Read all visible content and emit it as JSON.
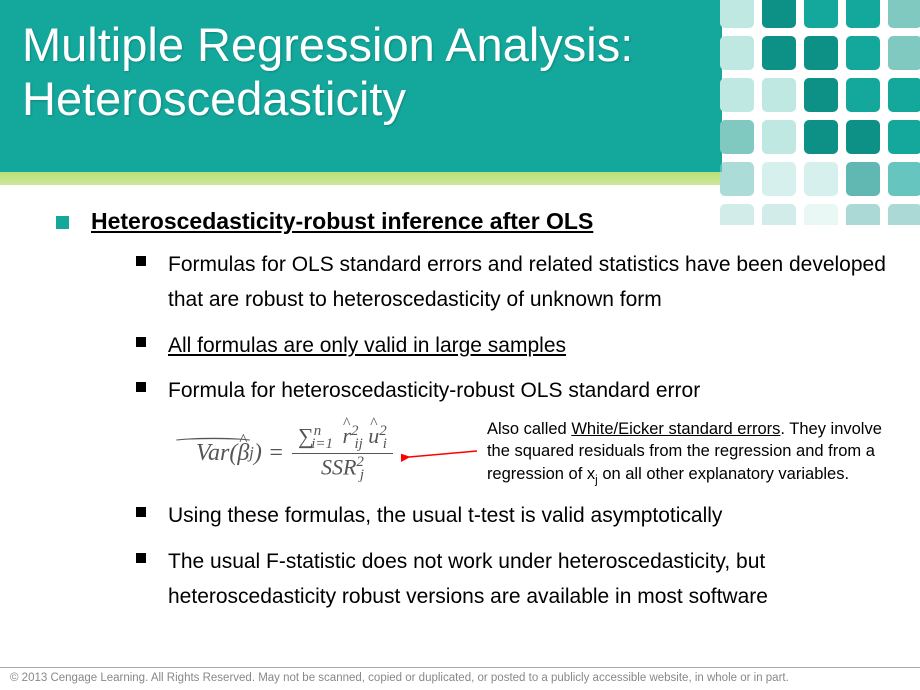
{
  "colors": {
    "teal": "#14a89c",
    "teal_dark": "#0d9187",
    "lime_top": "#b7df72",
    "lime_bot": "#cbe8a0",
    "arrow": "#ff0000",
    "text": "#000000",
    "footer": "#888888",
    "formula": "#555555",
    "deco_light": "#bfe8e3",
    "deco_mid": "#7fc9c1",
    "deco_teal": "#14a89c"
  },
  "title_line1": "Multiple Regression Analysis:",
  "title_line2": "Heteroscedasticity",
  "main_heading": "Heteroscedasticity-robust inference after OLS",
  "bullets": {
    "b1": "Formulas for OLS standard errors and related statistics have been developed that are robust to heteroscedasticity of unknown form",
    "b2": "All formulas are only valid in large samples",
    "b3": "Formula for heteroscedasticity-robust OLS standard error",
    "b4": "Using these formulas, the usual t-test is valid asymptotically",
    "b5": "The usual F-statistic does not work under heteroscedasticity, but heteroscedasticity robust versions are available in most software"
  },
  "annotation": {
    "pre": "Also called ",
    "underlined": "White/Eicker standard errors",
    "post1": ". They involve the squared residuals from the regression and from a regression of x",
    "sub": "j",
    "post2": " on all other explanatory variables."
  },
  "formula": {
    "lhs_var": "Var",
    "lhs_arg": "β",
    "lhs_sub": "j",
    "num_sum": "∑",
    "num_lo": "i=1",
    "num_hi": "n",
    "num_r": "r",
    "num_r_sub": "ij",
    "num_u": "u",
    "num_u_sub": "i",
    "sq": "2",
    "den_s": "SSR",
    "den_sub": "j"
  },
  "footer": "© 2013 Cengage Learning. All Rights Reserved. May not be scanned, copied or duplicated, or posted to a publicly accessible website, in whole or in part."
}
